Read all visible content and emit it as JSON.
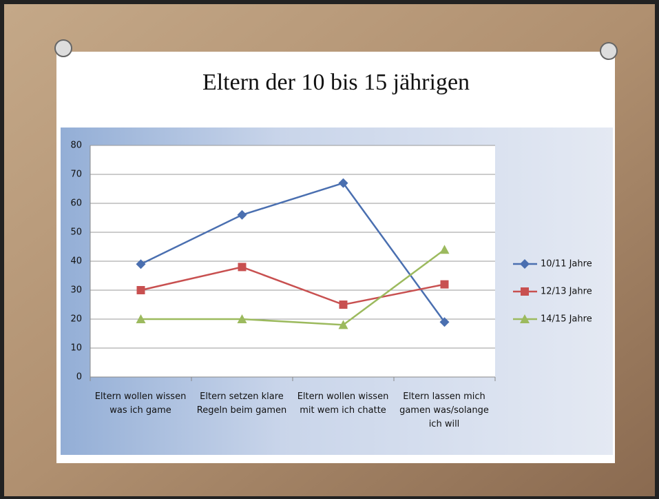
{
  "chart_data": {
    "type": "line",
    "title": "Eltern der 10 bis 15 jährigen",
    "categories": [
      "Eltern wollen wissen was ich game",
      "Eltern setzen klare Regeln beim gamen",
      "Eltern wollen wissen mit wem ich chatte",
      "Eltern lassen mich gamen was/solange ich will"
    ],
    "series": [
      {
        "name": "10/11 Jahre",
        "color": "#4a6fb0",
        "marker": "diamond",
        "values": [
          39,
          56,
          67,
          19
        ]
      },
      {
        "name": "12/13 Jahre",
        "color": "#c85050",
        "marker": "square",
        "values": [
          30,
          38,
          25,
          32
        ]
      },
      {
        "name": "14/15 Jahre",
        "color": "#9cba5e",
        "marker": "triangle",
        "values": [
          20,
          20,
          18,
          44
        ]
      }
    ],
    "ylim": [
      0,
      80
    ],
    "yticks": [
      0,
      10,
      20,
      30,
      40,
      50,
      60,
      70,
      80
    ],
    "grid": true,
    "legend": "right"
  }
}
